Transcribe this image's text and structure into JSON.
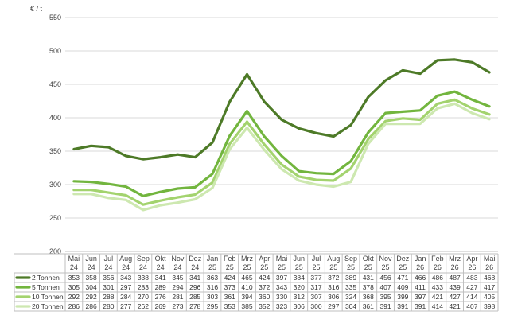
{
  "chart_data": {
    "type": "line",
    "y_unit_label": "€ / t",
    "ylim": [
      200,
      550
    ],
    "y_ticks": [
      "200",
      "250",
      "300",
      "350",
      "400",
      "450",
      "500",
      "550"
    ],
    "grid": "horizontal",
    "legend": "data-table-left",
    "categories": [
      [
        "Mai",
        "24"
      ],
      [
        "Jun",
        "24"
      ],
      [
        "Jul",
        "24"
      ],
      [
        "Aug",
        "24"
      ],
      [
        "Sep",
        "24"
      ],
      [
        "Okt",
        "24"
      ],
      [
        "Nov",
        "24"
      ],
      [
        "Dez",
        "24"
      ],
      [
        "Jan",
        "25"
      ],
      [
        "Feb",
        "25"
      ],
      [
        "Mrz",
        "25"
      ],
      [
        "Apr",
        "25"
      ],
      [
        "Mai",
        "25"
      ],
      [
        "Jun",
        "25"
      ],
      [
        "Jul",
        "25"
      ],
      [
        "Aug",
        "25"
      ],
      [
        "Sep",
        "25"
      ],
      [
        "Okt",
        "25"
      ],
      [
        "Nov",
        "25"
      ],
      [
        "Dez",
        "25"
      ],
      [
        "Jan",
        "26"
      ],
      [
        "Feb",
        "26"
      ],
      [
        "Mrz",
        "26"
      ],
      [
        "Apr",
        "26"
      ],
      [
        "Mai",
        "26"
      ]
    ],
    "series": [
      {
        "name": "2 Tonnen",
        "color": "#4d7a27",
        "values": [
          "353",
          "358",
          "356",
          "343",
          "338",
          "341",
          "345",
          "341",
          "363",
          "424",
          "465",
          "424",
          "397",
          "384",
          "377",
          "372",
          "389",
          "431",
          "456",
          "471",
          "466",
          "486",
          "487",
          "483",
          "468"
        ]
      },
      {
        "name": "5 Tonnen",
        "color": "#72b53e",
        "values": [
          "305",
          "304",
          "301",
          "297",
          "283",
          "289",
          "294",
          "296",
          "316",
          "373",
          "410",
          "372",
          "343",
          "320",
          "317",
          "316",
          "335",
          "378",
          "407",
          "409",
          "411",
          "433",
          "439",
          "427",
          "417"
        ]
      },
      {
        "name": "10 Tonnen",
        "color": "#a3d36e",
        "values": [
          "292",
          "292",
          "288",
          "284",
          "270",
          "276",
          "281",
          "285",
          "303",
          "361",
          "394",
          "360",
          "330",
          "312",
          "307",
          "306",
          "324",
          "368",
          "395",
          "399",
          "397",
          "421",
          "427",
          "414",
          "405"
        ]
      },
      {
        "name": "20 Tonnen",
        "color": "#cde8b0",
        "values": [
          "286",
          "286",
          "280",
          "277",
          "262",
          "269",
          "273",
          "278",
          "295",
          "353",
          "385",
          "352",
          "323",
          "306",
          "300",
          "297",
          "304",
          "361",
          "391",
          "391",
          "391",
          "414",
          "421",
          "407",
          "398"
        ]
      }
    ]
  }
}
